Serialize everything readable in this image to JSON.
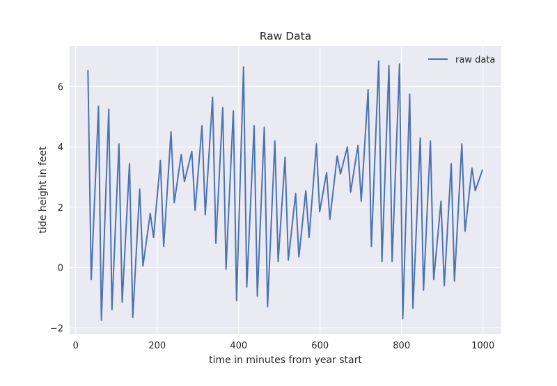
{
  "chart_data": {
    "type": "line",
    "title": "Raw Data",
    "xlabel": "time in minutes from year start",
    "ylabel": "tide height in feet",
    "xlim": [
      -15,
      1045
    ],
    "ylim": [
      -2.2,
      7.35
    ],
    "xticks": [
      0,
      200,
      400,
      600,
      800,
      1000
    ],
    "yticks": [
      -2,
      0,
      2,
      4,
      6
    ],
    "grid": true,
    "legend_position": "top-right",
    "style": {
      "background": "#eaeaf2",
      "grid": "#ffffff",
      "line": "#4c72b0"
    },
    "series": [
      {
        "name": "raw data",
        "x": [
          30,
          38,
          56,
          63,
          81,
          89,
          106,
          114,
          132,
          140,
          157,
          165,
          183,
          191,
          208,
          216,
          234,
          242,
          259,
          267,
          285,
          293,
          310,
          318,
          336,
          344,
          361,
          369,
          387,
          395,
          412,
          420,
          438,
          446,
          463,
          471,
          489,
          497,
          514,
          522,
          540,
          548,
          565,
          573,
          591,
          599,
          616,
          624,
          642,
          650,
          667,
          675,
          693,
          701,
          718,
          726,
          744,
          752,
          769,
          777,
          795,
          803,
          820,
          828,
          846,
          854,
          871,
          879,
          897,
          905,
          922,
          930,
          948,
          956,
          973,
          981,
          999
        ],
        "y": [
          6.55,
          -0.4,
          5.35,
          -1.75,
          5.25,
          -1.4,
          4.1,
          -1.15,
          3.45,
          -1.65,
          2.6,
          0.05,
          1.8,
          1.0,
          3.55,
          0.7,
          4.5,
          2.15,
          3.75,
          2.85,
          3.85,
          1.9,
          4.7,
          1.75,
          5.65,
          0.8,
          5.3,
          -0.05,
          5.2,
          -1.1,
          6.65,
          -0.65,
          4.7,
          -0.95,
          4.65,
          -1.3,
          4.2,
          0.2,
          3.65,
          0.25,
          2.45,
          0.35,
          2.55,
          1.0,
          4.1,
          1.85,
          3.15,
          1.6,
          3.7,
          3.1,
          4.0,
          2.5,
          4.05,
          2.2,
          5.9,
          0.7,
          6.85,
          0.2,
          6.7,
          0.2,
          6.75,
          -1.7,
          5.75,
          -1.35,
          4.3,
          -0.75,
          4.2,
          -0.4,
          2.2,
          -0.6,
          3.45,
          -0.45,
          4.1,
          1.2,
          3.3,
          2.55,
          3.25
        ]
      }
    ]
  }
}
